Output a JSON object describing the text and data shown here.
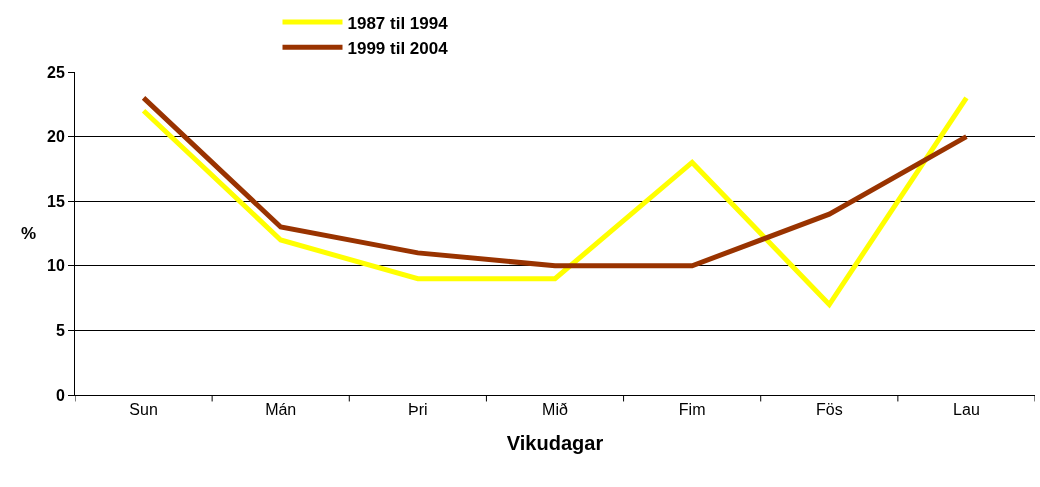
{
  "chart_data": {
    "type": "line",
    "xlabel": "Vikudagar",
    "ylabel": "%",
    "categories": [
      "Sun",
      "Mán",
      "Þri",
      "Mið",
      "Fim",
      "Fös",
      "Lau"
    ],
    "series": [
      {
        "name": "1987 til 1994",
        "color": "#ffff00",
        "values": [
          22,
          12,
          9,
          9,
          18,
          7,
          23
        ]
      },
      {
        "name": "1999 til 2004",
        "color": "#993300",
        "values": [
          23,
          13,
          11,
          10,
          10,
          14,
          20
        ]
      }
    ],
    "ylim": [
      0,
      25
    ],
    "yticks": [
      0,
      5,
      10,
      15,
      20,
      25
    ],
    "grid": "y",
    "legend": "top",
    "marker": "none",
    "line_style": "solid"
  }
}
